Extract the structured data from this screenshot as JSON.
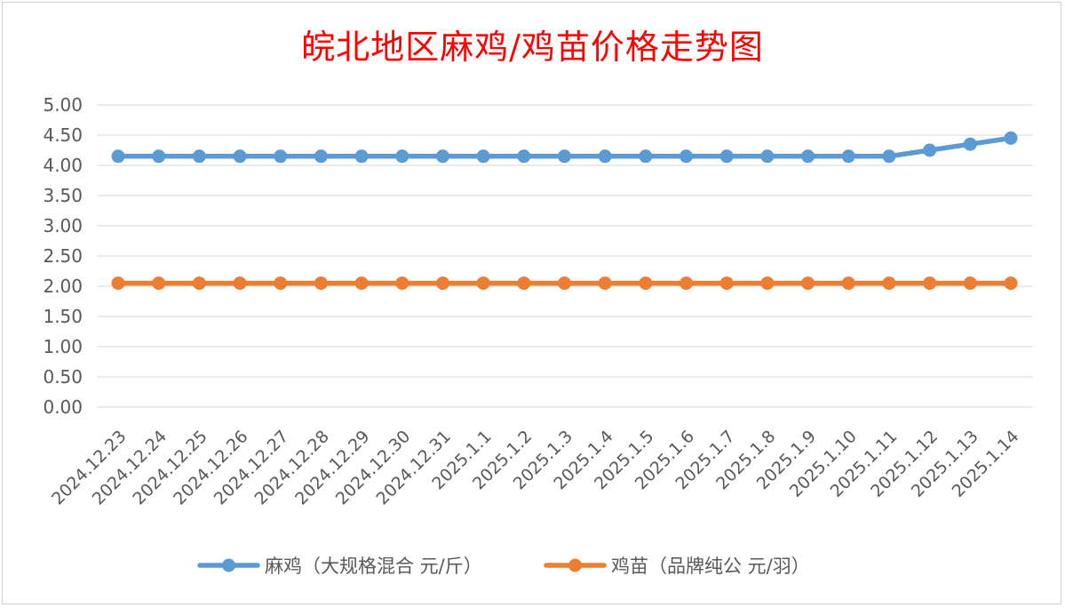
{
  "chart_data": {
    "type": "line",
    "title": "皖北地区麻鸡/鸡苗价格走势图",
    "xlabel": "",
    "ylabel": "",
    "ylim": [
      0,
      5
    ],
    "ystep": 0.5,
    "y_tick_labels": [
      "0.00",
      "0.50",
      "1.00",
      "1.50",
      "2.00",
      "2.50",
      "3.00",
      "3.50",
      "4.00",
      "4.50",
      "5.00"
    ],
    "grid": true,
    "legend_position": "bottom",
    "categories": [
      "2024.12.23",
      "2024.12.24",
      "2024.12.25",
      "2024.12.26",
      "2024.12.27",
      "2024.12.28",
      "2024.12.29",
      "2024.12.30",
      "2024.12.31",
      "2025.1.1",
      "2025.1.2",
      "2025.1.3",
      "2025.1.4",
      "2025.1.5",
      "2025.1.6",
      "2025.1.7",
      "2025.1.8",
      "2025.1.9",
      "2025.1.10",
      "2025.1.11",
      "2025.1.12",
      "2025.1.13",
      "2025.1.14"
    ],
    "series": [
      {
        "name": "麻鸡（大规格混合 元/斤）",
        "color": "#5b9bd5",
        "values": [
          4.15,
          4.15,
          4.15,
          4.15,
          4.15,
          4.15,
          4.15,
          4.15,
          4.15,
          4.15,
          4.15,
          4.15,
          4.15,
          4.15,
          4.15,
          4.15,
          4.15,
          4.15,
          4.15,
          4.15,
          4.25,
          4.35,
          4.45
        ]
      },
      {
        "name": "鸡苗（品牌纯公 元/羽）",
        "color": "#ed7d31",
        "values": [
          2.05,
          2.05,
          2.05,
          2.05,
          2.05,
          2.05,
          2.05,
          2.05,
          2.05,
          2.05,
          2.05,
          2.05,
          2.05,
          2.05,
          2.05,
          2.05,
          2.05,
          2.05,
          2.05,
          2.05,
          2.05,
          2.05,
          2.05
        ]
      }
    ],
    "colors": {
      "title": "#ff0000",
      "grid": "#d9d9d9",
      "text": "#595959"
    }
  }
}
